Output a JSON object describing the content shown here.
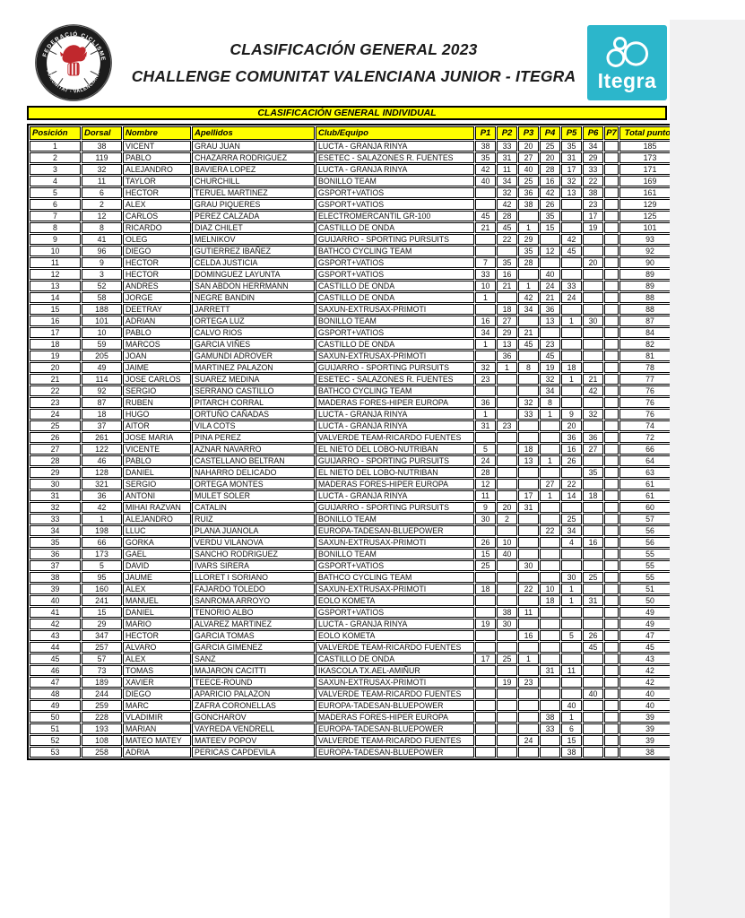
{
  "header": {
    "title_line1": "CLASIFICACIÓN GENERAL 2023",
    "title_line2": "CHALLENGE COMUNITAT VALENCIANA JUNIOR - ITEGRA",
    "federation_logo": {
      "ring_text_top": "FEDERACIÓ  CICLISME",
      "ring_text_bottom": "COMUNITAT - VALENCIANA",
      "ring_color": "#1c1c1c",
      "emblem_color": "#c0282d"
    },
    "itegra_logo": {
      "label": "Itegra",
      "bg_color": "#2cb6cb",
      "icon": "molecule-icon"
    }
  },
  "banner": {
    "label": "CLASIFICACIÓN GENERAL INDIVIDUAL",
    "bg_color": "#ffff00"
  },
  "table": {
    "columns": [
      "Posición",
      "Dorsal",
      "Nombre",
      "Apellidos",
      "Club/Equipo",
      "P1",
      "P2",
      "P3",
      "P4",
      "P5",
      "P6",
      "P7",
      "Total puntos"
    ],
    "rows": [
      [
        "1",
        "38",
        "VICENT",
        "GRAU JUAN",
        "LUCTA - GRANJA RINYA",
        "38",
        "33",
        "20",
        "25",
        "35",
        "34",
        "",
        "185"
      ],
      [
        "2",
        "119",
        "PABLO",
        "CHAZARRA RODRIGUEZ",
        "ESETEC - SALAZONES R. FUENTES",
        "35",
        "31",
        "27",
        "20",
        "31",
        "29",
        "",
        "173"
      ],
      [
        "3",
        "32",
        "ALEJANDRO",
        "BAVIERA LOPEZ",
        "LUCTA - GRANJA RINYA",
        "42",
        "11",
        "40",
        "28",
        "17",
        "33",
        "",
        "171"
      ],
      [
        "4",
        "11",
        "TAYLOR",
        "CHURCHILL",
        "BONILLO TEAM",
        "40",
        "34",
        "25",
        "16",
        "32",
        "22",
        "",
        "169"
      ],
      [
        "5",
        "6",
        "HECTOR",
        "TERUEL MARTINEZ",
        "GSPORT+VATIOS",
        "",
        "32",
        "36",
        "42",
        "13",
        "38",
        "",
        "161"
      ],
      [
        "6",
        "2",
        "ALEX",
        "GRAU PIQUERES",
        "GSPORT+VATIOS",
        "",
        "42",
        "38",
        "26",
        "",
        "23",
        "",
        "129"
      ],
      [
        "7",
        "12",
        "CARLOS",
        "PEREZ CALZADA",
        "ELECTROMERCANTIL GR-100",
        "45",
        "28",
        "",
        "35",
        "",
        "17",
        "",
        "125"
      ],
      [
        "8",
        "8",
        "RICARDO",
        "DIAZ CHILET",
        "CASTILLO DE ONDA",
        "21",
        "45",
        "1",
        "15",
        "",
        "19",
        "",
        "101"
      ],
      [
        "9",
        "41",
        "OLEG",
        "MELNIKOV",
        "GUIJARRO -  SPORTING PURSUITS",
        "",
        "22",
        "29",
        "",
        "42",
        "",
        "",
        "93"
      ],
      [
        "10",
        "96",
        "DIEGO",
        "GUTIERREZ IBAÑEZ",
        "BATHCO CYCLING TEAM",
        "",
        "",
        "35",
        "12",
        "45",
        "",
        "",
        "92"
      ],
      [
        "11",
        "9",
        "HECTOR",
        "CELDA JUSTICIA",
        "GSPORT+VATIOS",
        "7",
        "35",
        "28",
        "",
        "",
        "20",
        "",
        "90"
      ],
      [
        "12",
        "3",
        "HECTOR",
        "DOMINGUEZ LAYUNTA",
        "GSPORT+VATIOS",
        "33",
        "16",
        "",
        "40",
        "",
        "",
        "",
        "89"
      ],
      [
        "13",
        "52",
        "ANDRES",
        "SAN ABDON HERRMANN",
        "CASTILLO DE ONDA",
        "10",
        "21",
        "1",
        "24",
        "33",
        "",
        "",
        "89"
      ],
      [
        "14",
        "58",
        "JORGE",
        "NEGRE BANDIN",
        "CASTILLO DE ONDA",
        "1",
        "",
        "42",
        "21",
        "24",
        "",
        "",
        "88"
      ],
      [
        "15",
        "188",
        "DEETRAY",
        "JARRETT",
        "SAXUN-EXTRUSAX-PRIMOTI",
        "",
        "18",
        "34",
        "36",
        "",
        "",
        "",
        "88"
      ],
      [
        "16",
        "101",
        "ADRIAN",
        "ORTEGA LUZ",
        "BONILLO TEAM",
        "16",
        "27",
        "",
        "13",
        "1",
        "30",
        "",
        "87"
      ],
      [
        "17",
        "10",
        "PABLO",
        "CALVO RIOS",
        "GSPORT+VATIOS",
        "34",
        "29",
        "21",
        "",
        "",
        "",
        "",
        "84"
      ],
      [
        "18",
        "59",
        "MARCOS",
        "GARCIA VIÑES",
        "CASTILLO DE ONDA",
        "1",
        "13",
        "45",
        "23",
        "",
        "",
        "",
        "82"
      ],
      [
        "19",
        "205",
        "JOAN",
        "GAMUNDI ADROVER",
        "SAXUN-EXTRUSAX-PRIMOTI",
        "",
        "36",
        "",
        "45",
        "",
        "",
        "",
        "81"
      ],
      [
        "20",
        "49",
        "JAIME",
        "MARTINEZ PALAZON",
        "GUIJARRO -  SPORTING PURSUITS",
        "32",
        "1",
        "8",
        "19",
        "18",
        "",
        "",
        "78"
      ],
      [
        "21",
        "114",
        "JOSE CARLOS",
        "SUAREZ MEDINA",
        "ESETEC - SALAZONES R. FUENTES",
        "23",
        "",
        "",
        "32",
        "1",
        "21",
        "",
        "77"
      ],
      [
        "22",
        "92",
        "SERGIO",
        "SERRANO CASTILLO",
        "BATHCO CYCLING TEAM",
        "",
        "",
        "",
        "34",
        "",
        "42",
        "",
        "76"
      ],
      [
        "23",
        "87",
        "RUBEN",
        "PITARCH CORRAL",
        "MADERAS FORES-HIPER EUROPA",
        "36",
        "",
        "32",
        "8",
        "",
        "",
        "",
        "76"
      ],
      [
        "24",
        "18",
        "HUGO",
        "ORTUÑO CAÑADAS",
        "LUCTA - GRANJA RINYA",
        "1",
        "",
        "33",
        "1",
        "9",
        "32",
        "",
        "76"
      ],
      [
        "25",
        "37",
        "AITOR",
        "VILA COTS",
        "LUCTA - GRANJA RINYA",
        "31",
        "23",
        "",
        "",
        "20",
        "",
        "",
        "74"
      ],
      [
        "26",
        "261",
        "JOSE MARIA",
        "PINA PEREZ",
        "VALVERDE TEAM-RICARDO FUENTES",
        "",
        "",
        "",
        "",
        "36",
        "36",
        "",
        "72"
      ],
      [
        "27",
        "122",
        "VICENTE",
        "AZNAR NAVARRO",
        "EL NIETO DEL LOBO-NUTRIBAN",
        "5",
        "",
        "18",
        "",
        "16",
        "27",
        "",
        "66"
      ],
      [
        "28",
        "46",
        "PABLO",
        "CASTELLANO BELTRAN",
        "GUIJARRO -  SPORTING PURSUITS",
        "24",
        "",
        "13",
        "1",
        "26",
        "",
        "",
        "64"
      ],
      [
        "29",
        "128",
        "DANIEL",
        "NAHARRO DELICADO",
        "EL NIETO DEL LOBO-NUTRIBAN",
        "28",
        "",
        "",
        "",
        "",
        "35",
        "",
        "63"
      ],
      [
        "30",
        "321",
        "SERGIO",
        "ORTEGA MONTES",
        "MADERAS FORES-HIPER EUROPA",
        "12",
        "",
        "",
        "27",
        "22",
        "",
        "",
        "61"
      ],
      [
        "31",
        "36",
        "ANTONI",
        "MULET SOLER",
        "LUCTA - GRANJA RINYA",
        "11",
        "",
        "17",
        "1",
        "14",
        "18",
        "",
        "61"
      ],
      [
        "32",
        "42",
        "MIHAI RAZVAN",
        "CATALIN",
        "GUIJARRO -  SPORTING PURSUITS",
        "9",
        "20",
        "31",
        "",
        "",
        "",
        "",
        "60"
      ],
      [
        "33",
        "1",
        "ALEJANDRO",
        "RUIZ",
        "BONILLO TEAM",
        "30",
        "2",
        "",
        "",
        "25",
        "",
        "",
        "57"
      ],
      [
        "34",
        "198",
        "LLUC",
        "PLANA JUANOLA",
        "EUROPA-TADESAN-BLUEPOWER",
        "",
        "",
        "",
        "22",
        "34",
        "",
        "",
        "56"
      ],
      [
        "35",
        "66",
        "GORKA",
        "VERDU VILANOVA",
        "SAXUN-EXTRUSAX-PRIMOTI",
        "26",
        "10",
        "",
        "",
        "4",
        "16",
        "",
        "56"
      ],
      [
        "36",
        "173",
        "GAEL",
        "SANCHO RODRIGUEZ",
        "BONILLO TEAM",
        "15",
        "40",
        "",
        "",
        "",
        "",
        "",
        "55"
      ],
      [
        "37",
        "5",
        "DAVID",
        "IVARS SIRERA",
        "GSPORT+VATIOS",
        "25",
        "",
        "30",
        "",
        "",
        "",
        "",
        "55"
      ],
      [
        "38",
        "95",
        "JAUME",
        "LLORET I SORIANO",
        "BATHCO CYCLING TEAM",
        "",
        "",
        "",
        "",
        "30",
        "25",
        "",
        "55"
      ],
      [
        "39",
        "160",
        "ALEX",
        "FAJARDO TOLEDO",
        "SAXUN-EXTRUSAX-PRIMOTI",
        "18",
        "",
        "22",
        "10",
        "1",
        "",
        "",
        "51"
      ],
      [
        "40",
        "241",
        "MANUEL",
        "SANROMA ARROYO",
        "EOLO KOMETA",
        "",
        "",
        "",
        "18",
        "1",
        "31",
        "",
        "50"
      ],
      [
        "41",
        "15",
        "DANIEL",
        "TENORIO ALBO",
        "GSPORT+VATIOS",
        "",
        "38",
        "11",
        "",
        "",
        "",
        "",
        "49"
      ],
      [
        "42",
        "29",
        "MARIO",
        "ALVAREZ MARTINEZ",
        "LUCTA - GRANJA RINYA",
        "19",
        "30",
        "",
        "",
        "",
        "",
        "",
        "49"
      ],
      [
        "43",
        "347",
        "HECTOR",
        "GARCIA TOMAS",
        "EOLO KOMETA",
        "",
        "",
        "16",
        "",
        "5",
        "26",
        "",
        "47"
      ],
      [
        "44",
        "257",
        "ALVARO",
        "GARCIA GIMENEZ",
        "VALVERDE TEAM-RICARDO FUENTES",
        "",
        "",
        "",
        "",
        "",
        "45",
        "",
        "45"
      ],
      [
        "45",
        "57",
        "ALEX",
        "SANZ",
        "CASTILLO DE ONDA",
        "17",
        "25",
        "1",
        "",
        "",
        "",
        "",
        "43"
      ],
      [
        "46",
        "73",
        "TOMAS",
        "MAJARON CACITTI",
        "IKASCOLA TX.AEL-AMIÑUR",
        "",
        "",
        "",
        "31",
        "11",
        "",
        "",
        "42"
      ],
      [
        "47",
        "189",
        "XAVIER",
        "TEECE-ROUND",
        "SAXUN-EXTRUSAX-PRIMOTI",
        "",
        "19",
        "23",
        "",
        "",
        "",
        "",
        "42"
      ],
      [
        "48",
        "244",
        "DIEGO",
        "APARICIO  PALAZON",
        "VALVERDE TEAM-RICARDO FUENTES",
        "",
        "",
        "",
        "",
        "",
        "40",
        "",
        "40"
      ],
      [
        "49",
        "259",
        "MARC",
        "ZAFRA CORONELLAS",
        "EUROPA-TADESAN-BLUEPOWER",
        "",
        "",
        "",
        "",
        "40",
        "",
        "",
        "40"
      ],
      [
        "50",
        "228",
        "VLADIMIR",
        "GONCHAROV",
        "MADERAS FORES-HIPER EUROPA",
        "",
        "",
        "",
        "38",
        "1",
        "",
        "",
        "39"
      ],
      [
        "51",
        "193",
        "MARIAN",
        "VAYREDA VENDRELL",
        "EUROPA-TADESAN-BLUEPOWER",
        "",
        "",
        "",
        "33",
        "6",
        "",
        "",
        "39"
      ],
      [
        "52",
        "108",
        "MATEO MATEY",
        "MATEEV POPOV",
        "VALVERDE TEAM-RICARDO FUENTES",
        "",
        "",
        "24",
        "",
        "15",
        "",
        "",
        "39"
      ],
      [
        "53",
        "258",
        "ADRIA",
        "PERICAS CAPDEVILA",
        "EUROPA-TADESAN-BLUEPOWER",
        "",
        "",
        "",
        "",
        "38",
        "",
        "",
        "38"
      ]
    ]
  }
}
